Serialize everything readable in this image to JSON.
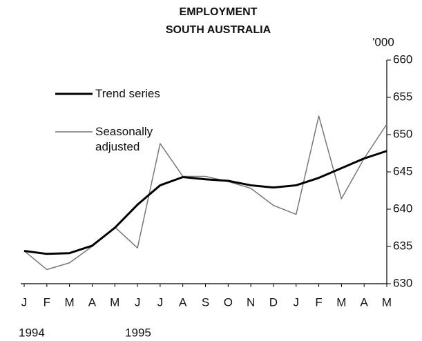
{
  "chart_data": {
    "type": "line",
    "title": "EMPLOYMENT",
    "subtitle": "SOUTH AUSTRALIA",
    "y_axis_label": "'000",
    "categories": [
      "J",
      "F",
      "M",
      "A",
      "M",
      "J",
      "J",
      "A",
      "S",
      "O",
      "N",
      "D",
      "J",
      "F",
      "M",
      "A",
      "M"
    ],
    "years": [
      "1994",
      "1995"
    ],
    "series": [
      {
        "name": "Trend series",
        "color": "#000000",
        "values": [
          634.4,
          634.0,
          634.1,
          635.1,
          637.5,
          640.6,
          643.2,
          644.3,
          644.0,
          643.8,
          643.2,
          642.9,
          643.2,
          644.2,
          645.5,
          646.8,
          647.8
        ]
      },
      {
        "name": "Seasonally adjusted",
        "color": "#777777",
        "values": [
          634.4,
          631.9,
          632.8,
          635.0,
          637.6,
          634.8,
          648.8,
          644.4,
          644.4,
          643.7,
          642.8,
          640.5,
          639.3,
          652.5,
          641.4,
          646.8,
          651.4
        ]
      }
    ],
    "ylim": [
      630,
      660
    ],
    "yticks": [
      630,
      635,
      640,
      645,
      650,
      655,
      660
    ],
    "grid": false
  }
}
